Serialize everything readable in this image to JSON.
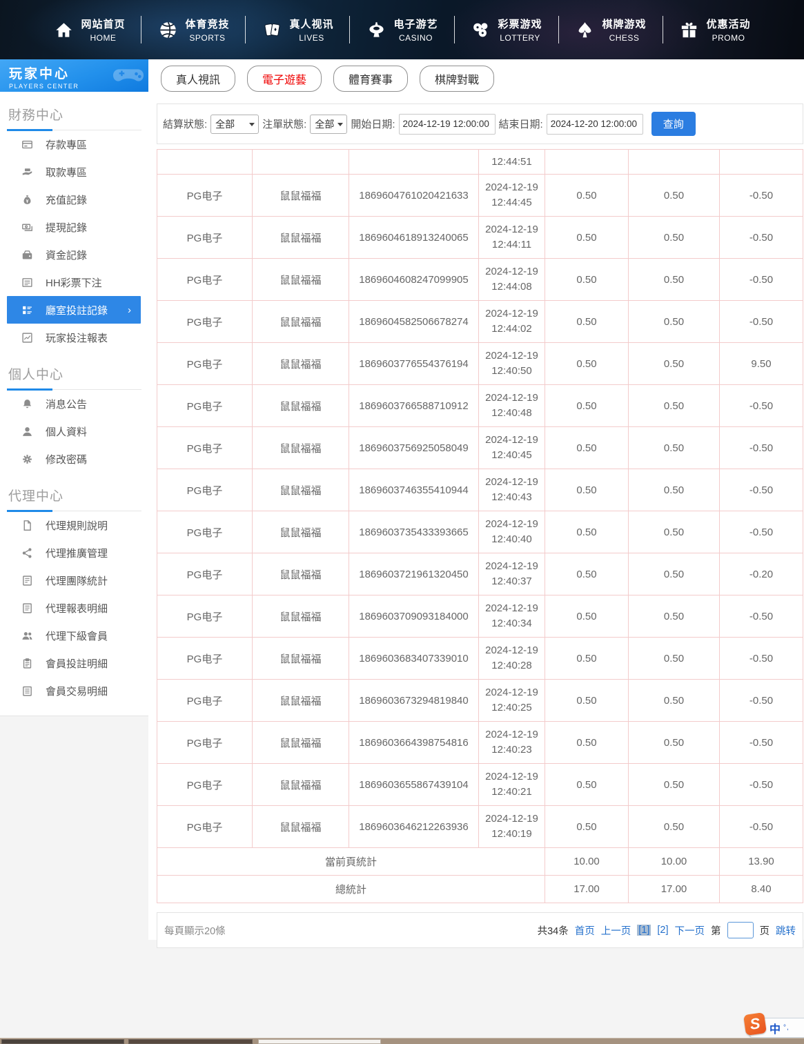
{
  "nav": {
    "items": [
      {
        "key": "home",
        "cn": "网站首页",
        "en": "HOME",
        "icon": "home-icon"
      },
      {
        "key": "sports",
        "cn": "体育竞技",
        "en": "SPORTS",
        "icon": "basketball-icon"
      },
      {
        "key": "lives",
        "cn": "真人视讯",
        "en": "LIVES",
        "icon": "cards-icon"
      },
      {
        "key": "casino",
        "cn": "电子游艺",
        "en": "CASINO",
        "icon": "roulette-icon"
      },
      {
        "key": "lottery",
        "cn": "彩票游戏",
        "en": "LOTTERY",
        "icon": "lottery-balls-icon"
      },
      {
        "key": "chess",
        "cn": "棋牌游戏",
        "en": "CHESS",
        "icon": "spade-icon"
      },
      {
        "key": "promo",
        "cn": "优惠活动",
        "en": "PROMO",
        "icon": "gift-icon"
      }
    ]
  },
  "sidebar": {
    "title": "玩家中心",
    "subtitle": "PLAYERS CENTER",
    "sections": [
      {
        "title": "財務中心",
        "items": [
          {
            "label": "存款專區",
            "icon": "bank-card-icon"
          },
          {
            "label": "取款專區",
            "icon": "withdraw-hand-icon"
          },
          {
            "label": "充值記錄",
            "icon": "money-bag-icon"
          },
          {
            "label": "提現記錄",
            "icon": "cash-record-icon"
          },
          {
            "label": "資金記錄",
            "icon": "purse-icon"
          },
          {
            "label": "HH彩票下注",
            "icon": "ticket-list-icon"
          },
          {
            "label": "廳室投註記錄",
            "icon": "hall-record-icon",
            "active": true,
            "chevron": "›"
          },
          {
            "label": "玩家投注報表",
            "icon": "chart-report-icon"
          }
        ]
      },
      {
        "title": "個人中心",
        "items": [
          {
            "label": "消息公告",
            "icon": "bell-icon"
          },
          {
            "label": "個人資料",
            "icon": "user-icon"
          },
          {
            "label": "修改密碼",
            "icon": "gear-icon"
          }
        ]
      },
      {
        "title": "代理中心",
        "items": [
          {
            "label": "代理規則說明",
            "icon": "document-icon"
          },
          {
            "label": "代理推廣管理",
            "icon": "share-icon"
          },
          {
            "label": "代理團隊統計",
            "icon": "team-stats-icon"
          },
          {
            "label": "代理報表明細",
            "icon": "report-detail-icon"
          },
          {
            "label": "代理下級會員",
            "icon": "members-icon"
          },
          {
            "label": "會員投註明細",
            "icon": "clipboard-icon"
          },
          {
            "label": "會員交易明細",
            "icon": "trans-list-icon"
          }
        ]
      }
    ]
  },
  "tabs": [
    {
      "key": "live",
      "label": "真人視訊",
      "active": false
    },
    {
      "key": "egame",
      "label": "電子遊藝",
      "active": true
    },
    {
      "key": "sports",
      "label": "體育賽事",
      "active": false
    },
    {
      "key": "chess",
      "label": "棋牌對戰",
      "active": false
    }
  ],
  "filters": {
    "settle_label": "結算狀態:",
    "settle_value": "全部",
    "order_label": "注單狀態:",
    "order_value": "全部",
    "start_label": "開始日期:",
    "start_value": "2024-12-19 12:00:00",
    "end_label": "結束日期:",
    "end_value": "2024-12-20 12:00:00",
    "search_label": "查詢"
  },
  "table": {
    "partial_row_time": "12:44:51",
    "rows": [
      [
        "PG电子",
        "鼠鼠福福",
        "1869604761020421633",
        "2024-12-19",
        "12:44:45",
        "0.50",
        "0.50",
        "-0.50"
      ],
      [
        "PG电子",
        "鼠鼠福福",
        "1869604618913240065",
        "2024-12-19",
        "12:44:11",
        "0.50",
        "0.50",
        "-0.50"
      ],
      [
        "PG电子",
        "鼠鼠福福",
        "1869604608247099905",
        "2024-12-19",
        "12:44:08",
        "0.50",
        "0.50",
        "-0.50"
      ],
      [
        "PG电子",
        "鼠鼠福福",
        "1869604582506678274",
        "2024-12-19",
        "12:44:02",
        "0.50",
        "0.50",
        "-0.50"
      ],
      [
        "PG电子",
        "鼠鼠福福",
        "1869603776554376194",
        "2024-12-19",
        "12:40:50",
        "0.50",
        "0.50",
        "9.50"
      ],
      [
        "PG电子",
        "鼠鼠福福",
        "1869603766588710912",
        "2024-12-19",
        "12:40:48",
        "0.50",
        "0.50",
        "-0.50"
      ],
      [
        "PG电子",
        "鼠鼠福福",
        "1869603756925058049",
        "2024-12-19",
        "12:40:45",
        "0.50",
        "0.50",
        "-0.50"
      ],
      [
        "PG电子",
        "鼠鼠福福",
        "1869603746355410944",
        "2024-12-19",
        "12:40:43",
        "0.50",
        "0.50",
        "-0.50"
      ],
      [
        "PG电子",
        "鼠鼠福福",
        "1869603735433393665",
        "2024-12-19",
        "12:40:40",
        "0.50",
        "0.50",
        "-0.50"
      ],
      [
        "PG电子",
        "鼠鼠福福",
        "1869603721961320450",
        "2024-12-19",
        "12:40:37",
        "0.50",
        "0.50",
        "-0.20"
      ],
      [
        "PG电子",
        "鼠鼠福福",
        "1869603709093184000",
        "2024-12-19",
        "12:40:34",
        "0.50",
        "0.50",
        "-0.50"
      ],
      [
        "PG电子",
        "鼠鼠福福",
        "1869603683407339010",
        "2024-12-19",
        "12:40:28",
        "0.50",
        "0.50",
        "-0.50"
      ],
      [
        "PG电子",
        "鼠鼠福福",
        "1869603673294819840",
        "2024-12-19",
        "12:40:25",
        "0.50",
        "0.50",
        "-0.50"
      ],
      [
        "PG电子",
        "鼠鼠福福",
        "1869603664398754816",
        "2024-12-19",
        "12:40:23",
        "0.50",
        "0.50",
        "-0.50"
      ],
      [
        "PG电子",
        "鼠鼠福福",
        "1869603655867439104",
        "2024-12-19",
        "12:40:21",
        "0.50",
        "0.50",
        "-0.50"
      ],
      [
        "PG电子",
        "鼠鼠福福",
        "1869603646212263936",
        "2024-12-19",
        "12:40:19",
        "0.50",
        "0.50",
        "-0.50"
      ]
    ],
    "summary": [
      {
        "label": "當前頁統計",
        "values": [
          "10.00",
          "10.00",
          "13.90"
        ]
      },
      {
        "label": "總統計",
        "values": [
          "17.00",
          "17.00",
          "8.40"
        ]
      }
    ]
  },
  "pagination": {
    "page_size_text": "每頁顯示20條",
    "total_text": "共34条",
    "first_label": "首页",
    "prev_label": "上一页",
    "pages": [
      {
        "label": "[1]",
        "current": true
      },
      {
        "label": "[2]",
        "current": false
      }
    ],
    "next_label": "下一页",
    "jump_prefix": "第",
    "jump_suffix": "页",
    "jump_label": "跳转"
  },
  "ime": {
    "logo": "S",
    "lang": "中",
    "marks": "°,"
  },
  "colors": {
    "accent_blue": "#2e87e6",
    "active_tab_red": "#ef0000",
    "link_blue": "#2470cc",
    "table_border_pink": "#f3cbcb"
  }
}
